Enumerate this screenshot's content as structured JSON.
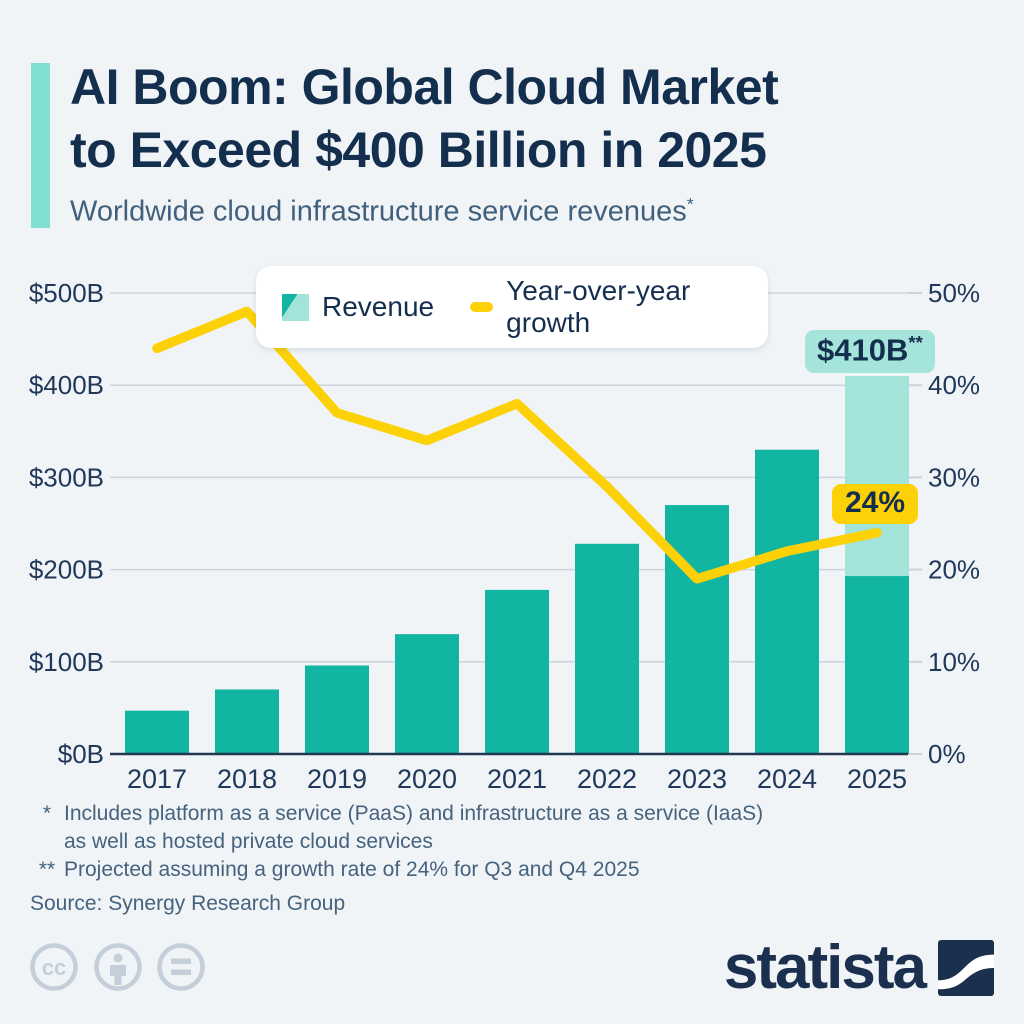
{
  "header": {
    "title_line1": "AI Boom: Global Cloud Market",
    "title_line2": "to Exceed $400 Billion in 2025",
    "subtitle": "Worldwide cloud infrastructure service revenues",
    "subtitle_sup": "*"
  },
  "legend": {
    "revenue_label": "Revenue",
    "growth_label": "Year-over-year growth"
  },
  "chart_data": {
    "type": "combo_bar_line",
    "title": "AI Boom: Global Cloud Market to Exceed $400 Billion in 2025",
    "subtitle": "Worldwide cloud infrastructure service revenues*",
    "categories": [
      "2017",
      "2018",
      "2019",
      "2020",
      "2021",
      "2022",
      "2023",
      "2024",
      "2025"
    ],
    "series": [
      {
        "name": "Revenue",
        "type": "bar",
        "unit": "USD billions",
        "values": [
          47,
          70,
          96,
          130,
          178,
          228,
          270,
          330,
          410
        ]
      },
      {
        "name": "Year-over-year growth",
        "type": "line",
        "unit": "percent",
        "values": [
          44,
          48,
          37,
          34,
          38,
          29,
          19,
          22,
          24
        ]
      }
    ],
    "projection": {
      "year": "2025",
      "actual_portion_billions": 193,
      "total_billions": 410
    },
    "left_axis": {
      "labels": [
        "$0B",
        "$100B",
        "$200B",
        "$300B",
        "$400B",
        "$500B"
      ],
      "values": [
        0,
        100,
        200,
        300,
        400,
        500
      ],
      "range": [
        0,
        500
      ]
    },
    "right_axis": {
      "labels": [
        "0%",
        "10%",
        "20%",
        "30%",
        "40%",
        "50%"
      ],
      "values": [
        0,
        10,
        20,
        30,
        40,
        50
      ],
      "range": [
        0,
        50
      ]
    },
    "grid": true,
    "legend_position": "top",
    "annotations": {
      "revenue_2025": {
        "text": "$410B",
        "sup": "**"
      },
      "growth_2025": {
        "text": "24%"
      }
    }
  },
  "footnotes": {
    "note1_marker": "*",
    "note1_line1": "Includes platform as a service (PaaS) and infrastructure as a service (IaaS)",
    "note1_line2": "as well as hosted private cloud services",
    "note2_marker": "**",
    "note2_text": "Projected assuming a growth rate of 24% for Q3 and Q4 2025",
    "source": "Source: Synergy Research Group"
  },
  "footer": {
    "cc_label": "cc",
    "wordmark": "statista"
  },
  "colors": {
    "background": "#f0f4f7",
    "title": "#142f4e",
    "subtitle": "#41607d",
    "accent_bar": "#82e0d3",
    "bar_teal": "#12b5a2",
    "bar_teal_light": "#a3e4da",
    "line_yellow": "#fcd107",
    "grid": "#ccd3db",
    "axis": "#223850",
    "tick_text": "#20395a",
    "footnote_text": "#45627e",
    "cc_icon": "#c5cfda",
    "logo_navy": "#1b2f4f",
    "callout_revenue_bg": "#a5e4db",
    "callout_growth_bg": "#fcd107",
    "legend_bg": "#ffffff"
  }
}
